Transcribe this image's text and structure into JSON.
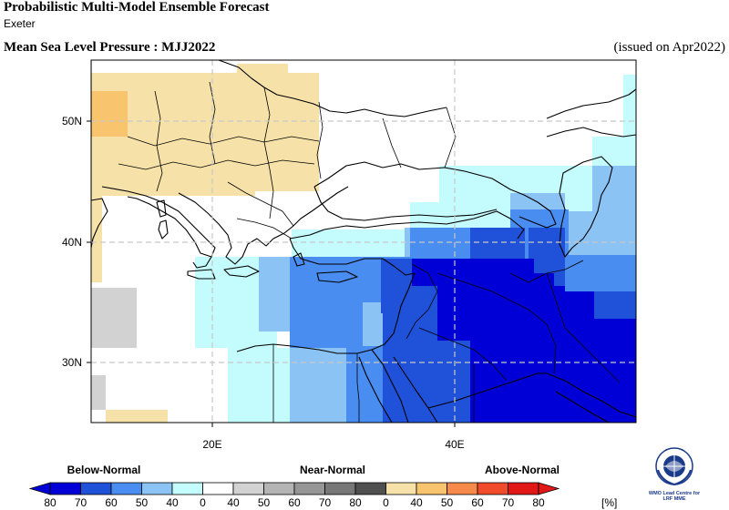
{
  "header": {
    "title": "Probabilistic Multi-Model Ensemble Forecast",
    "subtitle": "Exeter",
    "variable": "Mean Sea Level Pressure : MJJ2022",
    "issued": "(issued on Apr2022)"
  },
  "map": {
    "lon_range": [
      10,
      55
    ],
    "lat_range": [
      25,
      55
    ],
    "lat_labels": [
      "50N",
      "40N",
      "30N"
    ],
    "lon_labels": [
      "20E",
      "40E"
    ],
    "gridline_style": "dashed"
  },
  "legend": {
    "categories": [
      "Below-Normal",
      "Near-Normal",
      "Above-Normal"
    ],
    "tick_labels": [
      "80",
      "70",
      "60",
      "50",
      "40",
      "0",
      "40",
      "50",
      "60",
      "70",
      "80",
      "0",
      "40",
      "50",
      "60",
      "70",
      "80"
    ],
    "unit": "[%]",
    "colors": {
      "below_80": "#0000d6",
      "below_70": "#1f52d9",
      "below_60": "#4a8df0",
      "below_50": "#8cc3f5",
      "below_40": "#c4fbfc",
      "blank": "#ffffff",
      "near_40": "#d2d2d2",
      "near_50": "#b4b4b4",
      "near_60": "#969696",
      "near_70": "#787878",
      "near_80": "#505050",
      "above_40": "#f6e2a9",
      "above_50": "#f8c46e",
      "above_60": "#f58a4a",
      "above_70": "#f04b2a",
      "above_80": "#e01818"
    }
  },
  "logo": {
    "line1": "WMO Lead Centre for",
    "line2": "LRF MME",
    "icon": "wmo-emblem-icon"
  }
}
